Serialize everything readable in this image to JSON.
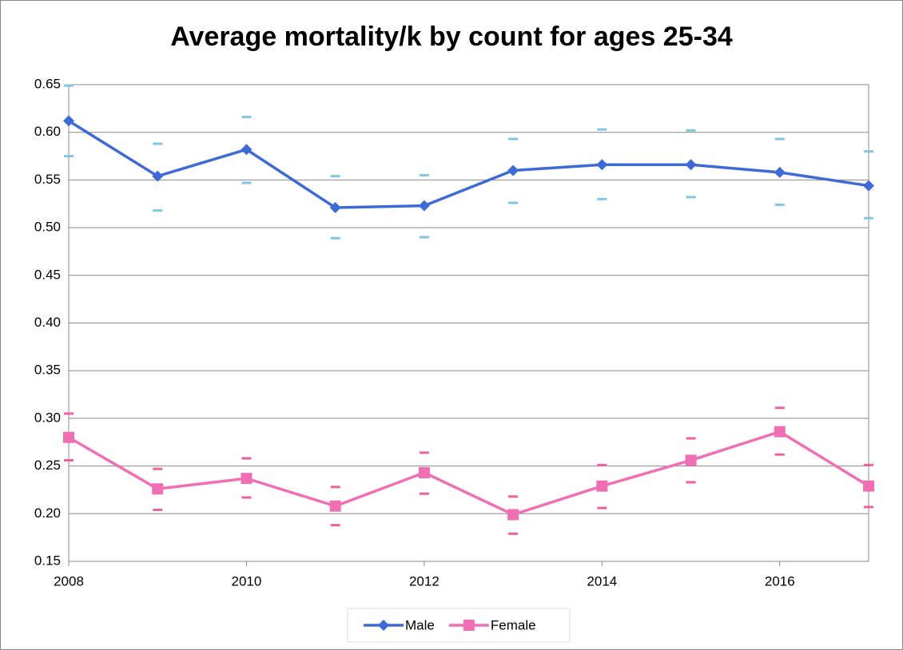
{
  "chart_data": {
    "type": "line",
    "title": "Average mortality/k by count for ages 25-34",
    "x": [
      2008,
      2009,
      2010,
      2011,
      2012,
      2013,
      2014,
      2015,
      2016,
      2017
    ],
    "xlim": [
      2008,
      2017
    ],
    "xticks": [
      2008,
      2010,
      2012,
      2014,
      2016
    ],
    "ylim": [
      0.15,
      0.65
    ],
    "yticks": [
      0.15,
      {
        "value": 0.2,
        "label": "0.20"
      },
      0.25,
      {
        "value": 0.3,
        "label": "0.30"
      },
      0.35,
      {
        "value": 0.4,
        "label": "0.40"
      },
      0.45,
      {
        "value": 0.5,
        "label": "0.50"
      },
      0.55,
      {
        "value": 0.6,
        "label": "0.60"
      },
      0.65
    ],
    "grid": true,
    "legend": "bottom",
    "series": [
      {
        "name": "Male",
        "color": "#3d6ad6",
        "marker": "diamond",
        "error_color": "#7ec8e3",
        "values": [
          0.612,
          0.554,
          0.582,
          0.521,
          0.523,
          0.56,
          0.566,
          0.566,
          0.558,
          0.544
        ],
        "upper": [
          0.649,
          0.588,
          0.616,
          0.554,
          0.555,
          0.593,
          0.603,
          0.602,
          0.593,
          0.58
        ],
        "lower": [
          0.575,
          0.518,
          0.547,
          0.489,
          0.49,
          0.526,
          0.53,
          0.532,
          0.524,
          0.51
        ]
      },
      {
        "name": "Female",
        "color": "#f06eb4",
        "marker": "square",
        "error_color": "#f0609f",
        "values": [
          0.28,
          0.226,
          0.237,
          0.208,
          0.243,
          0.199,
          0.229,
          0.256,
          0.286,
          0.229
        ],
        "upper": [
          0.305,
          0.247,
          0.258,
          0.228,
          0.264,
          0.218,
          0.251,
          0.279,
          0.311,
          0.251
        ],
        "lower": [
          0.256,
          0.204,
          0.217,
          0.188,
          0.221,
          0.179,
          0.206,
          0.233,
          0.262,
          0.207
        ]
      }
    ]
  }
}
